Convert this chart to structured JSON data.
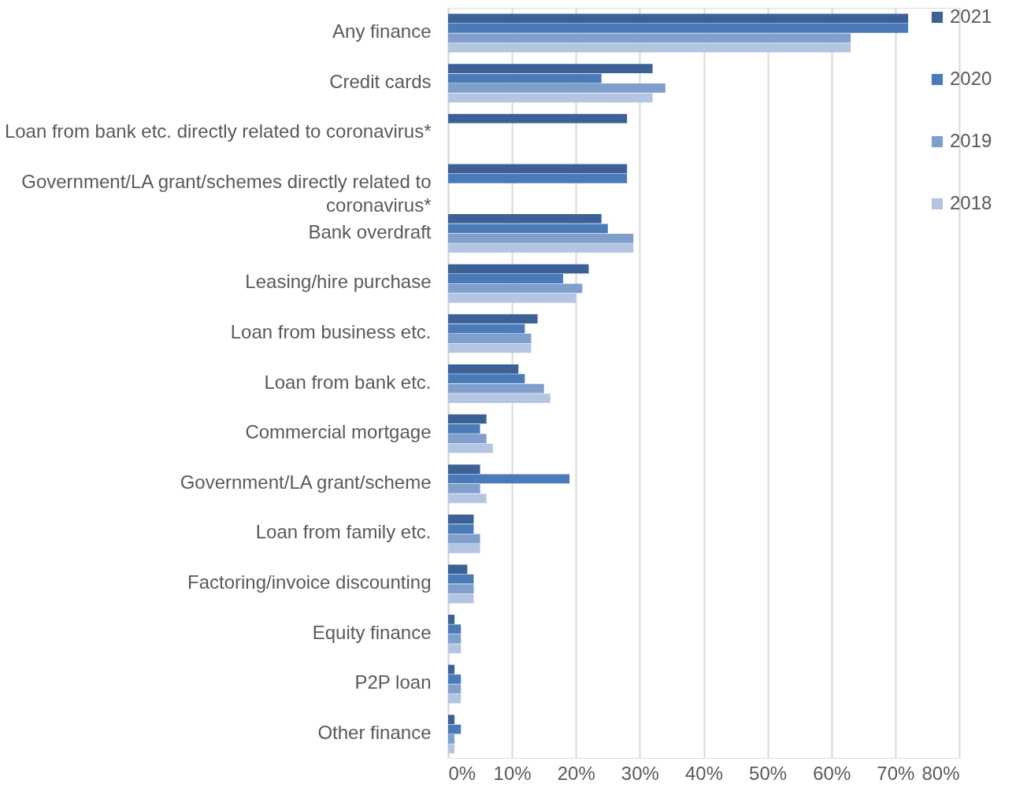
{
  "chart_data": {
    "type": "bar",
    "orientation": "horizontal",
    "categories": [
      "Any finance",
      "Credit cards",
      "Loan from bank etc. directly related to coronavirus*",
      "Government/LA grant/schemes directly related to coronavirus*",
      "Bank overdraft",
      "Leasing/hire purchase",
      "Loan from business etc.",
      "Loan from bank etc.",
      "Commercial mortgage",
      "Government/LA grant/scheme",
      "Loan from family etc.",
      "Factoring/invoice discounting",
      "Equity finance",
      "P2P loan",
      "Other finance"
    ],
    "series": [
      {
        "name": "2021",
        "color": "#3b6196",
        "values": [
          72,
          32,
          28,
          28,
          24,
          22,
          14,
          11,
          6,
          5,
          4,
          3,
          1,
          1,
          1
        ]
      },
      {
        "name": "2020",
        "color": "#4a7ab8",
        "values": [
          72,
          24,
          null,
          28,
          25,
          18,
          12,
          12,
          5,
          19,
          4,
          4,
          2,
          2,
          2
        ]
      },
      {
        "name": "2019",
        "color": "#809fcc",
        "values": [
          63,
          34,
          null,
          null,
          29,
          21,
          13,
          15,
          6,
          5,
          5,
          4,
          2,
          2,
          1
        ]
      },
      {
        "name": "2018",
        "color": "#b4c5e2",
        "values": [
          63,
          32,
          null,
          null,
          29,
          20,
          13,
          16,
          7,
          6,
          5,
          4,
          2,
          2,
          1
        ]
      }
    ],
    "xlim": [
      0,
      80
    ],
    "xticks": [
      {
        "value": 0,
        "label": "0%"
      },
      {
        "value": 10,
        "label": "10%"
      },
      {
        "value": 20,
        "label": "20%"
      },
      {
        "value": 30,
        "label": "30%"
      },
      {
        "value": 40,
        "label": "40%"
      },
      {
        "value": 50,
        "label": "50%"
      },
      {
        "value": 60,
        "label": "60%"
      },
      {
        "value": 70,
        "label": "70%"
      },
      {
        "value": 80,
        "label": "80%"
      }
    ],
    "grid": "x",
    "legend": "right"
  }
}
